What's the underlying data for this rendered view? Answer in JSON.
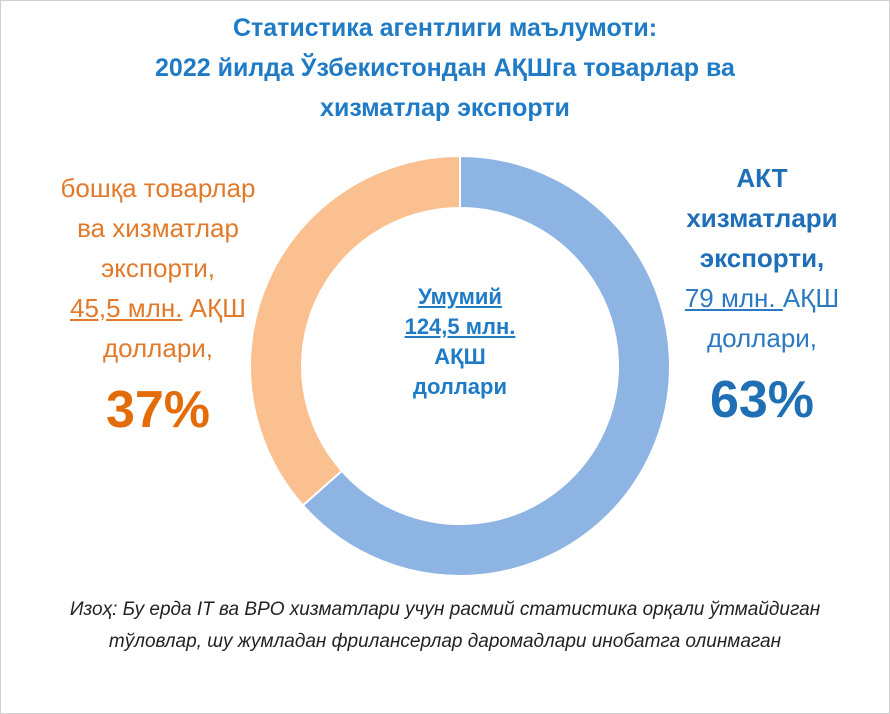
{
  "title": {
    "line1": "Статистика агентлиги маълумоти:",
    "line2": "2022 йилда Ўзбекистондан АҚШга товарлар ва",
    "line3": "хизматлар экспорти"
  },
  "left_label": {
    "line1": "бошқа товарлар",
    "line2": "ва хизматлар",
    "line3": "экспорти,",
    "amount": "45,5 млн.",
    "currency": " АҚШ",
    "line5": "доллари,",
    "percent": "37%"
  },
  "right_label": {
    "line1": "АКТ",
    "line2": "хизматлари",
    "line3": "экспорти,",
    "amount": "79 млн. ",
    "currency": "АҚШ",
    "line5": "доллари,",
    "percent": "63%"
  },
  "center_label": {
    "line1": "Умумий",
    "line2": "124,5 млн.",
    "line3": "АҚШ",
    "line4": "доллари"
  },
  "note": {
    "line1": "Изоҳ: Бу ерда IT ва BPO хизматлари учун расмий статистика орқали ўтмайдиган",
    "line2": "тўловлар, шу жумладан фрилансерлар даромадлари инобатга олинмаган"
  },
  "colors": {
    "ict_slice": "#8eb4e3",
    "other_slice": "#fac090",
    "title": "#1f7bc6"
  },
  "chart_data": {
    "type": "pie",
    "style": "donut",
    "categories": [
      "АКТ хизматлари экспорти",
      "бошқа товарлар ва хизматлар экспорти"
    ],
    "values": [
      79,
      45.5
    ],
    "percents": [
      63,
      37
    ],
    "total": 124.5
  }
}
